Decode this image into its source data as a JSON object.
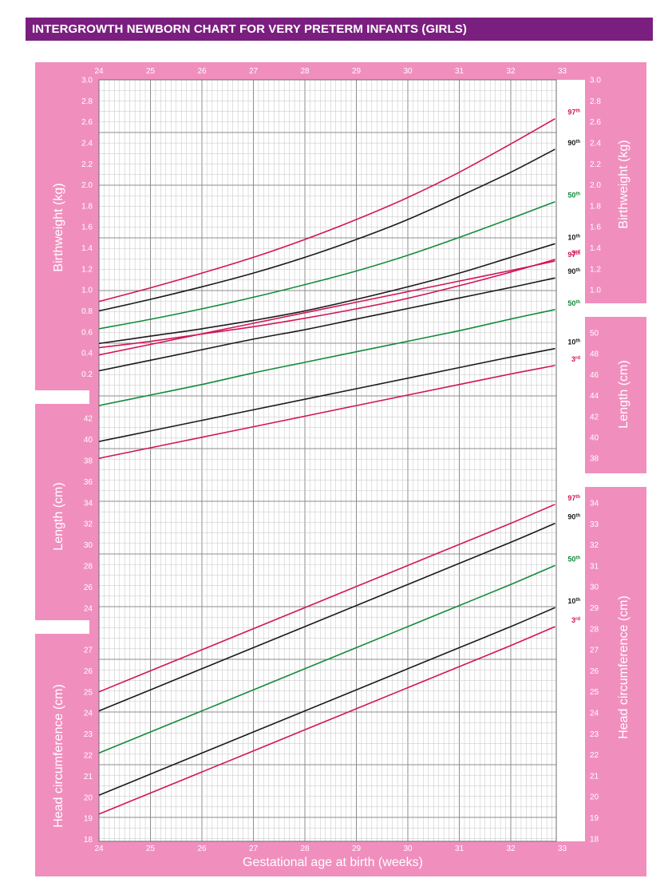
{
  "header": {
    "title": "INTERGROWTH NEWBORN CHART FOR VERY PRETERM INFANTS (GIRLS)"
  },
  "colors": {
    "header_bg": "#7a1f7f",
    "panel_pink": "#f08fbe",
    "p97_p3": "#d2145a",
    "p90_p10": "#1a1a1a",
    "p50": "#138a3c"
  },
  "chart_data": {
    "type": "line",
    "xlabel": "Gestational age at birth (weeks)",
    "xlim": [
      24,
      33
    ],
    "x_ticks": [
      "24",
      "25",
      "26",
      "27",
      "28",
      "29",
      "30",
      "31",
      "32",
      "33"
    ],
    "x": [
      24,
      25,
      26,
      27,
      28,
      29,
      30,
      31,
      32,
      32.86
    ],
    "percentile_labels": {
      "p97": {
        "num": "97",
        "suffix": "th"
      },
      "p90": {
        "num": "90",
        "suffix": "th"
      },
      "p50": {
        "num": "50",
        "suffix": "th"
      },
      "p10": {
        "num": "10",
        "suffix": "th"
      },
      "p3": {
        "num": "3",
        "suffix": "rd"
      }
    },
    "panels": [
      {
        "id": "weight",
        "ylabel": "Birthweight (kg)",
        "left_ticks": [
          "3.0",
          "2.8",
          "2.6",
          "2.4",
          "2.2",
          "2.0",
          "1.8",
          "1.6",
          "1.4",
          "1.2",
          "1.0",
          "0.8",
          "0.6",
          "0.4",
          "0.2"
        ],
        "right_ticks": [
          "3.0",
          "2.8",
          "2.6",
          "2.4",
          "2.2",
          "2.0",
          "1.8",
          "1.6",
          "1.4",
          "1.2",
          "1.0"
        ],
        "series": [
          {
            "key": "p97",
            "values": [
              0.89,
              1.02,
              1.16,
              1.31,
              1.48,
              1.67,
              1.88,
              2.12,
              2.39,
              2.63
            ]
          },
          {
            "key": "p90",
            "values": [
              0.8,
              0.91,
              1.03,
              1.16,
              1.31,
              1.48,
              1.67,
              1.89,
              2.12,
              2.34
            ]
          },
          {
            "key": "p50",
            "values": [
              0.63,
              0.72,
              0.82,
              0.93,
              1.05,
              1.18,
              1.33,
              1.5,
              1.68,
              1.84
            ]
          },
          {
            "key": "p10",
            "values": [
              0.49,
              0.56,
              0.63,
              0.71,
              0.8,
              0.91,
              1.03,
              1.16,
              1.31,
              1.44
            ]
          },
          {
            "key": "p3",
            "values": [
              0.45,
              0.51,
              0.58,
              0.65,
              0.73,
              0.82,
              0.92,
              1.04,
              1.17,
              1.29
            ]
          }
        ]
      },
      {
        "id": "length",
        "ylabel": "Length (cm)",
        "left_ticks": [
          "42",
          "40",
          "38",
          "36",
          "34",
          "32",
          "30",
          "28",
          "26",
          "24"
        ],
        "right_ticks": [
          "50",
          "48",
          "46",
          "44",
          "42",
          "40",
          "38"
        ],
        "series": [
          {
            "key": "p97",
            "values": [
              48.0,
              49.0,
              50.0,
              51.0,
              52.0,
              53.0,
              54.0,
              55.0,
              56.0,
              56.9
            ]
          },
          {
            "key": "p90",
            "values": [
              46.5,
              47.5,
              48.5,
              49.5,
              50.4,
              51.4,
              52.4,
              53.4,
              54.4,
              55.3
            ]
          },
          {
            "key": "p50",
            "values": [
              43.2,
              44.2,
              45.2,
              46.3,
              47.3,
              48.3,
              49.3,
              50.3,
              51.4,
              52.3
            ]
          },
          {
            "key": "p10",
            "values": [
              39.8,
              40.8,
              41.8,
              42.8,
              43.8,
              44.8,
              45.8,
              46.8,
              47.8,
              48.6
            ]
          },
          {
            "key": "p3",
            "values": [
              38.2,
              39.2,
              40.2,
              41.2,
              42.2,
              43.2,
              44.2,
              45.2,
              46.2,
              47.0
            ]
          }
        ]
      },
      {
        "id": "head",
        "ylabel": "Head circumference (cm)",
        "left_ticks": [
          "27",
          "26",
          "25",
          "24",
          "23",
          "22",
          "21",
          "20",
          "19",
          "18"
        ],
        "right_ticks": [
          "34",
          "33",
          "32",
          "31",
          "30",
          "29",
          "28",
          "27",
          "26",
          "25",
          "24",
          "23",
          "22",
          "21",
          "20",
          "19",
          "18"
        ],
        "series": [
          {
            "key": "p97",
            "values": [
              25.0,
              26.0,
              27.0,
              28.0,
              29.0,
              30.0,
              31.0,
              32.0,
              33.0,
              33.9
            ]
          },
          {
            "key": "p90",
            "values": [
              24.1,
              25.1,
              26.1,
              27.1,
              28.1,
              29.1,
              30.1,
              31.1,
              32.1,
              33.0
            ]
          },
          {
            "key": "p50",
            "values": [
              22.1,
              23.1,
              24.1,
              25.1,
              26.1,
              27.1,
              28.1,
              29.1,
              30.1,
              31.0
            ]
          },
          {
            "key": "p10",
            "values": [
              20.1,
              21.1,
              22.1,
              23.1,
              24.1,
              25.1,
              26.1,
              27.1,
              28.1,
              29.0
            ]
          },
          {
            "key": "p3",
            "values": [
              19.2,
              20.2,
              21.2,
              22.2,
              23.2,
              24.2,
              25.2,
              26.2,
              27.2,
              28.1
            ]
          }
        ]
      }
    ]
  }
}
